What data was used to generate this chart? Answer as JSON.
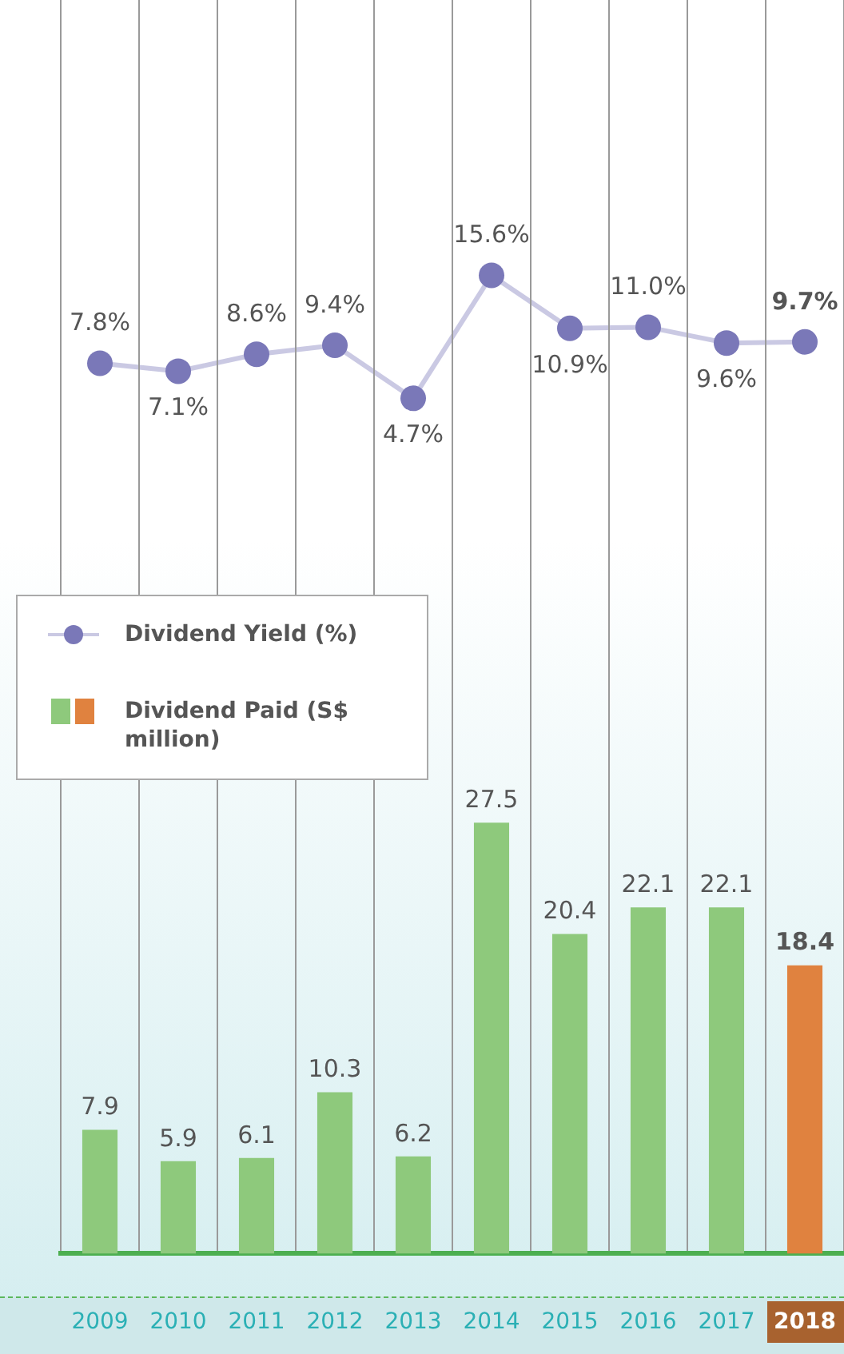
{
  "chart_data": [
    {
      "type": "line",
      "categories": [
        "2009",
        "2010",
        "2011",
        "2012",
        "2013",
        "2014",
        "2015",
        "2016",
        "2017",
        "2018"
      ],
      "series": [
        {
          "name": "Dividend Yield (%)",
          "color": "#7a78b8",
          "marker": "circle",
          "values": [
            7.8,
            7.1,
            8.6,
            9.4,
            4.7,
            15.6,
            10.9,
            11.0,
            9.6,
            9.7
          ],
          "value_labels": [
            "7.8%",
            "7.1%",
            "8.6%",
            "9.4%",
            "4.7%",
            "15.6%",
            "10.9%",
            "11.0%",
            "9.6%",
            "9.7%"
          ]
        }
      ],
      "tick_labels": false,
      "legend": "left"
    },
    {
      "type": "bar",
      "categories": [
        "2009",
        "2010",
        "2011",
        "2012",
        "2013",
        "2014",
        "2015",
        "2016",
        "2017",
        "2018"
      ],
      "series": [
        {
          "name": "Dividend Paid (S$ million)",
          "color": "#8ec97c",
          "colors": [
            "#8ec97c",
            "#8ec97c",
            "#8ec97c",
            "#8ec97c",
            "#8ec97c",
            "#8ec97c",
            "#8ec97c",
            "#8ec97c",
            "#8ec97c",
            "#e0823f"
          ],
          "values": [
            7.9,
            5.9,
            6.1,
            10.3,
            6.2,
            27.5,
            20.4,
            22.1,
            22.1,
            18.4
          ]
        }
      ],
      "data_labels": true,
      "grid": "x",
      "legend": "left"
    }
  ]
}
